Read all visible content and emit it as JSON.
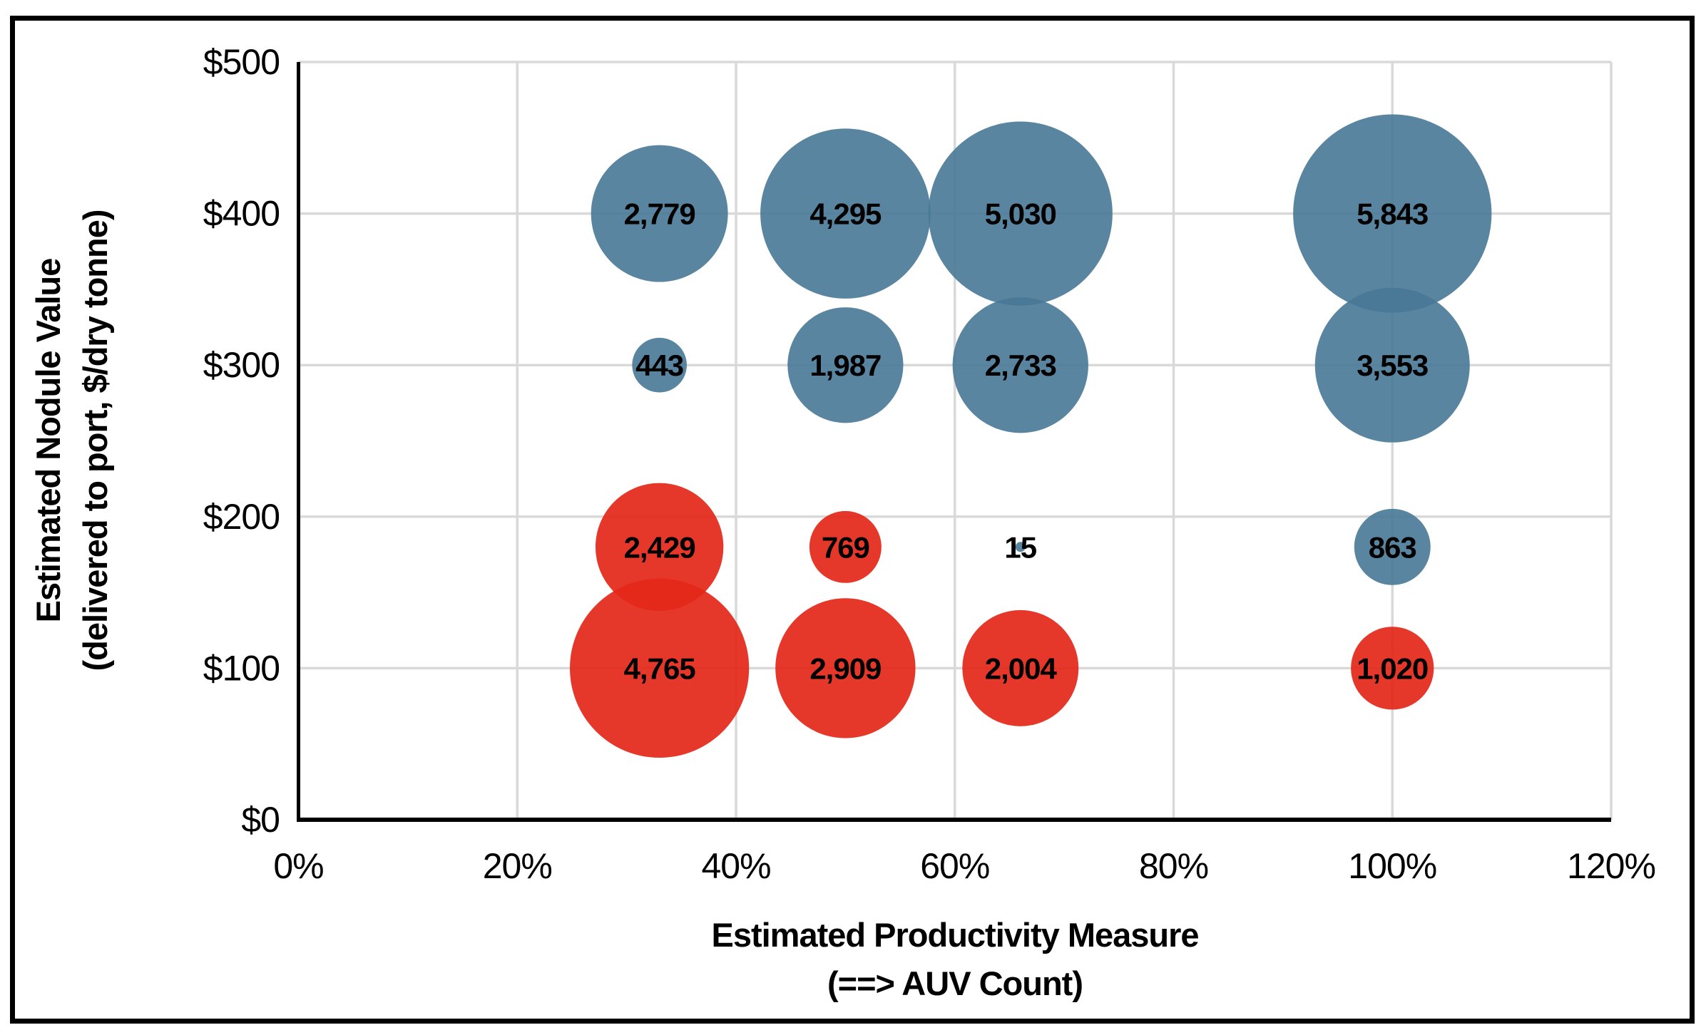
{
  "figure": {
    "background_color": "#FFFFFF",
    "border_color": "#000000"
  },
  "chart_data": {
    "type": "bubble",
    "title": "",
    "xlabel_line1": "Estimated Productivity Measure",
    "xlabel_line2": "(==> AUV Count)",
    "ylabel_line1": "Estimated Nodule Value",
    "ylabel_line2": "(delivered to port, $/dry tonne)",
    "xlim": [
      0,
      120
    ],
    "ylim": [
      0,
      500
    ],
    "x_ticks": [
      {
        "value": 0,
        "label": "0%"
      },
      {
        "value": 20,
        "label": "20%"
      },
      {
        "value": 40,
        "label": "40%"
      },
      {
        "value": 60,
        "label": "60%"
      },
      {
        "value": 80,
        "label": "80%"
      },
      {
        "value": 100,
        "label": "100%"
      },
      {
        "value": 120,
        "label": "120%"
      }
    ],
    "y_ticks": [
      {
        "value": 0,
        "label": "$0"
      },
      {
        "value": 100,
        "label": "$100"
      },
      {
        "value": 200,
        "label": "$200"
      },
      {
        "value": 300,
        "label": "$300"
      },
      {
        "value": 400,
        "label": "$400"
      },
      {
        "value": 500,
        "label": "$500"
      }
    ],
    "grid": true,
    "gridline_color": "#D9D9D9",
    "axis_line_color": "#000000",
    "legend": "none",
    "bubble_sizing": "area proportional to value",
    "series": [
      {
        "name": "blue-series",
        "color": "#487896",
        "opacity": 0.9,
        "points": [
          {
            "x": 33,
            "y": 400,
            "value": 2779,
            "label": "2,779"
          },
          {
            "x": 50,
            "y": 400,
            "value": 4295,
            "label": "4,295"
          },
          {
            "x": 66,
            "y": 400,
            "value": 5030,
            "label": "5,030"
          },
          {
            "x": 100,
            "y": 400,
            "value": 5843,
            "label": "5,843"
          },
          {
            "x": 33,
            "y": 300,
            "value": 443,
            "label": "443"
          },
          {
            "x": 50,
            "y": 300,
            "value": 1987,
            "label": "1,987"
          },
          {
            "x": 66,
            "y": 300,
            "value": 2733,
            "label": "2,733"
          },
          {
            "x": 100,
            "y": 300,
            "value": 3553,
            "label": "3,553"
          },
          {
            "x": 66,
            "y": 180,
            "value": 15,
            "label": "15"
          },
          {
            "x": 100,
            "y": 180,
            "value": 863,
            "label": "863"
          }
        ]
      },
      {
        "name": "red-series",
        "color": "#E42718",
        "opacity": 0.92,
        "points": [
          {
            "x": 33,
            "y": 180,
            "value": 2429,
            "label": "2,429"
          },
          {
            "x": 50,
            "y": 180,
            "value": 769,
            "label": "769"
          },
          {
            "x": 33,
            "y": 100,
            "value": 4765,
            "label": "4,765"
          },
          {
            "x": 50,
            "y": 100,
            "value": 2909,
            "label": "2,909"
          },
          {
            "x": 66,
            "y": 100,
            "value": 2004,
            "label": "2,004"
          },
          {
            "x": 100,
            "y": 100,
            "value": 1020,
            "label": "1,020"
          }
        ]
      }
    ]
  }
}
